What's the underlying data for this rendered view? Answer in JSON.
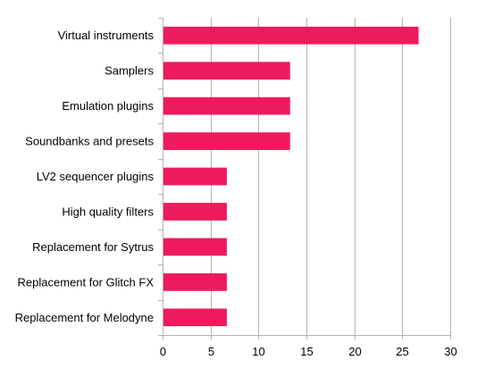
{
  "chart_data": {
    "type": "bar",
    "orientation": "horizontal",
    "categories": [
      "Virtual instruments",
      "Samplers",
      "Emulation plugins",
      "Soundbanks and presets",
      "LV2 sequencer plugins",
      "High quality filters",
      "Replacement for Sytrus",
      "Replacement for Glitch FX",
      "Replacement for Melodyne"
    ],
    "values": [
      26.7,
      13.3,
      13.3,
      13.3,
      6.7,
      6.7,
      6.7,
      6.7,
      6.7
    ],
    "xticks": [
      "0",
      "5",
      "10",
      "15",
      "20",
      "25",
      "30"
    ],
    "xlim": [
      0,
      30
    ],
    "title": "",
    "xlabel": "",
    "ylabel": "",
    "grid": "vertical",
    "legend": "none",
    "bar_color": "#ee1b5c",
    "grid_color": "#b3b3b3"
  }
}
